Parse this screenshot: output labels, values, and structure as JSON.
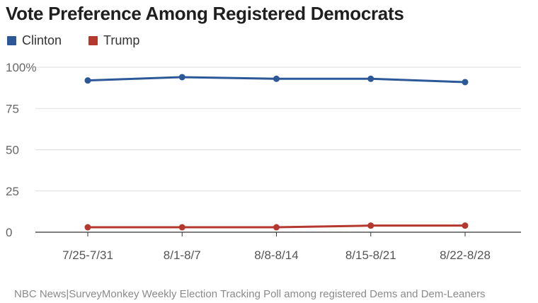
{
  "chart_data": {
    "type": "line",
    "title": "Vote Preference Among Registered Democrats",
    "categories": [
      "7/25-7/31",
      "8/1-8/7",
      "8/8-8/14",
      "8/15-8/21",
      "8/22-8/28"
    ],
    "series": [
      {
        "name": "Clinton",
        "color": "#2c5898",
        "values": [
          92,
          94,
          93,
          93,
          91
        ]
      },
      {
        "name": "Trump",
        "color": "#b5382f",
        "values": [
          3,
          3,
          3,
          4,
          4
        ]
      }
    ],
    "ylim": [
      0,
      100
    ],
    "yticks": [
      "100%",
      "75",
      "50",
      "25",
      "0"
    ],
    "ytick_values": [
      100,
      75,
      50,
      25,
      0
    ],
    "grid": true,
    "legend_position": "top-left",
    "xlabel": "",
    "ylabel": ""
  },
  "source_note": "NBC News|SurveyMonkey Weekly Election Tracking Poll among registered Dems and Dem-Leaners"
}
